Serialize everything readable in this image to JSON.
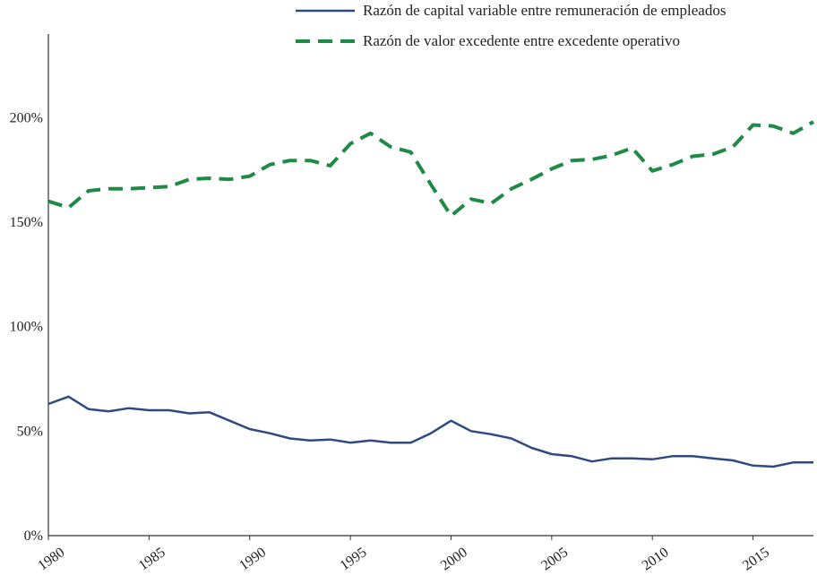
{
  "chart_data": {
    "type": "line",
    "title": "",
    "xlabel": "",
    "ylabel": "",
    "xlim": [
      1980,
      2018
    ],
    "ylim": [
      0,
      240
    ],
    "y_ticks": [
      0,
      50,
      100,
      150,
      200
    ],
    "y_tick_labels": [
      "0%",
      "50%",
      "100%",
      "150%",
      "200%"
    ],
    "x_ticks": [
      1980,
      1985,
      1990,
      1995,
      2000,
      2005,
      2010,
      2015
    ],
    "x_tick_labels": [
      "1980",
      "1985",
      "1990",
      "1995",
      "2000",
      "2005",
      "2010",
      "2015"
    ],
    "grid": false,
    "legend_position": "top-right",
    "x": [
      1980,
      1981,
      1982,
      1983,
      1984,
      1985,
      1986,
      1987,
      1988,
      1989,
      1990,
      1991,
      1992,
      1993,
      1994,
      1995,
      1996,
      1997,
      1998,
      1999,
      2000,
      2001,
      2002,
      2003,
      2004,
      2005,
      2006,
      2007,
      2008,
      2009,
      2010,
      2011,
      2012,
      2013,
      2014,
      2015,
      2016,
      2017,
      2018
    ],
    "series": [
      {
        "name": "Razón de capital variable entre remuneración de empleados",
        "color": "#2e4a82",
        "style": "solid",
        "values": [
          63,
          66.5,
          60.5,
          59.5,
          61,
          60,
          60,
          58.5,
          59,
          55,
          51,
          49,
          46.5,
          45.5,
          46,
          44.5,
          45.5,
          44.5,
          44.5,
          49,
          55,
          50,
          48.5,
          46.5,
          42,
          39,
          38,
          35.5,
          37,
          37,
          36.5,
          38,
          38,
          37,
          36,
          33.5,
          33,
          35,
          35
        ]
      },
      {
        "name": "Razón de valor excedente entre excedente operativo",
        "color": "#1f8a45",
        "style": "dashed",
        "values": [
          160,
          157,
          165,
          166,
          166,
          166.5,
          167,
          170.5,
          171,
          170.5,
          172,
          177.5,
          179.5,
          179.5,
          177,
          187.5,
          192.5,
          186,
          183.5,
          168,
          153,
          161,
          159,
          166,
          170.5,
          175.5,
          179.5,
          180,
          182,
          185.5,
          174.5,
          177.5,
          181.5,
          182.5,
          186,
          196.5,
          196,
          192.5,
          198
        ]
      }
    ]
  }
}
